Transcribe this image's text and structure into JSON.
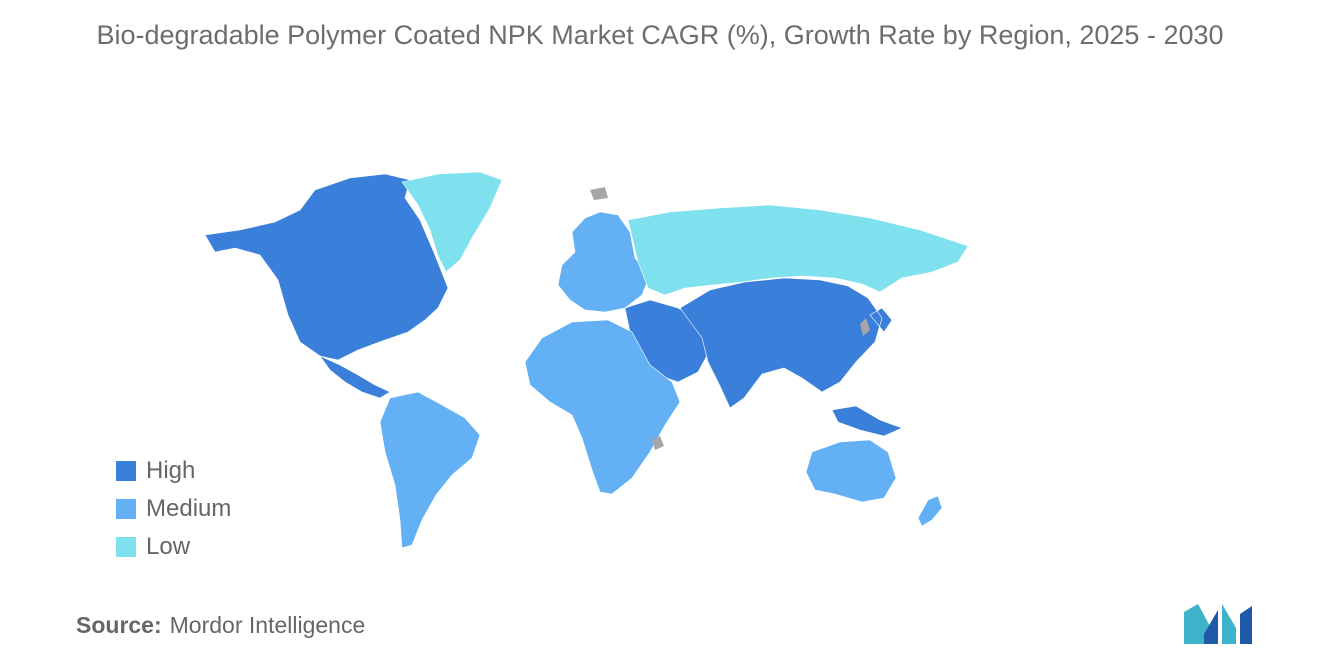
{
  "title": "Bio-degradable Polymer Coated NPK Market CAGR (%), Growth Rate by Region, 2025 - 2030",
  "legend": [
    {
      "label": "High",
      "color": "#3a7fd9"
    },
    {
      "label": "Medium",
      "color": "#64b0f4"
    },
    {
      "label": "Low",
      "color": "#7fe0ee"
    }
  ],
  "no_data_color": "#a6a6a6",
  "regions": [
    {
      "name": "North America",
      "level": "High"
    },
    {
      "name": "Central America",
      "level": "High"
    },
    {
      "name": "South America",
      "level": "Medium"
    },
    {
      "name": "Europe",
      "level": "Medium"
    },
    {
      "name": "Africa",
      "level": "Medium"
    },
    {
      "name": "Middle East",
      "level": "High"
    },
    {
      "name": "Asia-Pacific",
      "level": "High"
    },
    {
      "name": "Australia",
      "level": "Medium"
    },
    {
      "name": "New Zealand",
      "level": "Medium"
    },
    {
      "name": "Russia",
      "level": "Low"
    },
    {
      "name": "Greenland",
      "level": "Low"
    }
  ],
  "source": {
    "label": "Source:",
    "value": "Mordor Intelligence"
  },
  "logo_icon": "mordor-intelligence-logo-icon"
}
